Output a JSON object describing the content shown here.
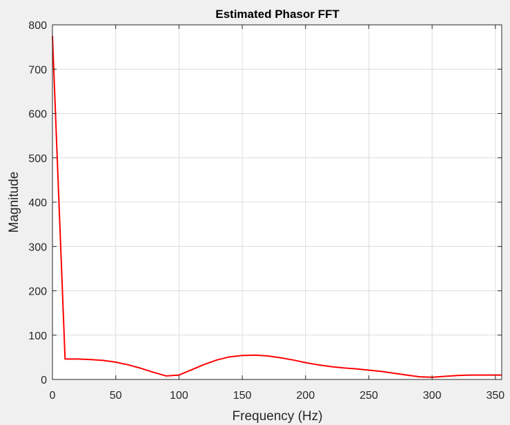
{
  "chart_data": {
    "type": "line",
    "title": "Estimated Phasor FFT",
    "xlabel": "Frequency (Hz)",
    "ylabel": "Magnitude",
    "xlim": [
      0,
      355
    ],
    "ylim": [
      0,
      800
    ],
    "xticks": [
      0,
      50,
      100,
      150,
      200,
      250,
      300,
      350
    ],
    "yticks": [
      0,
      100,
      200,
      300,
      400,
      500,
      600,
      700,
      800
    ],
    "grid": true,
    "colors": {
      "line": "#ff0000",
      "background": "#ffffff",
      "figure": "#f0f0f0"
    },
    "series": [
      {
        "x": [
          0,
          10,
          20,
          30,
          40,
          50,
          60,
          70,
          80,
          90,
          100,
          110,
          120,
          130,
          140,
          150,
          160,
          170,
          180,
          190,
          200,
          210,
          220,
          230,
          240,
          250,
          260,
          270,
          280,
          290,
          300,
          310,
          320,
          330,
          340,
          350,
          355
        ],
        "values": [
          775,
          46,
          46,
          45,
          43,
          39,
          33,
          25,
          16,
          8,
          10,
          22,
          34,
          44,
          51,
          54,
          55,
          53,
          49,
          44,
          38,
          33,
          29,
          26,
          24,
          21,
          18,
          14,
          10,
          6,
          5,
          7,
          9,
          10,
          10,
          10,
          10
        ]
      }
    ]
  }
}
